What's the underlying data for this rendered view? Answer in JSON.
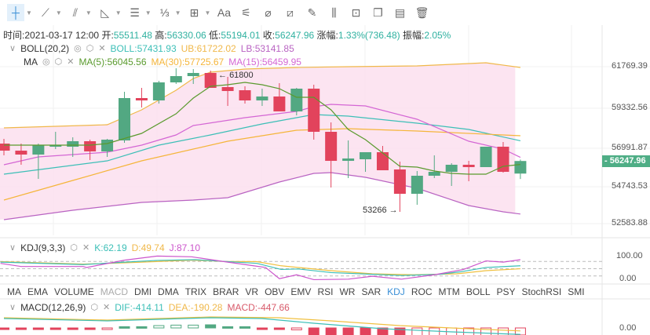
{
  "toolbar": {
    "tools": [
      {
        "name": "crosshair-icon",
        "glyph": "┼",
        "dropdown": true,
        "selected": true
      },
      {
        "name": "trend-line-icon",
        "glyph": "⟋",
        "dropdown": true
      },
      {
        "name": "parallel-lines-icon",
        "glyph": "⫽",
        "dropdown": true
      },
      {
        "name": "angle-icon",
        "glyph": "◺",
        "dropdown": true
      },
      {
        "name": "horizontal-lines-icon",
        "glyph": "☰",
        "dropdown": true
      },
      {
        "name": "fibonacci-icon",
        "glyph": "⅓",
        "dropdown": true
      },
      {
        "name": "rectangle-icon",
        "glyph": "⊞",
        "dropdown": true
      },
      {
        "name": "text-icon",
        "glyph": "Aa"
      },
      {
        "name": "measure-icon",
        "glyph": "⚟"
      },
      {
        "name": "eraser-icon",
        "glyph": "⌀"
      },
      {
        "name": "ruler-icon",
        "glyph": "⧄"
      },
      {
        "name": "pen-icon",
        "glyph": "✎"
      },
      {
        "name": "candles-icon",
        "glyph": "⫼"
      },
      {
        "name": "lock-icon",
        "glyph": "⊡"
      },
      {
        "name": "bookmark-icon",
        "glyph": "❐"
      },
      {
        "name": "calendar-edit-icon",
        "glyph": "▤"
      },
      {
        "name": "trash-icon",
        "glyph": "🗑"
      }
    ]
  },
  "info": {
    "time_label": "时间:",
    "time": "2021-03-17 12:00",
    "open_label": "开:",
    "open": "55511.48",
    "high_label": "高:",
    "high": "56330.06",
    "low_label": "低:",
    "low": "55194.01",
    "close_label": "收:",
    "close": "56247.96",
    "change_label": "涨幅:",
    "change": "1.33%(736.48)",
    "amp_label": "振幅:",
    "amp": "2.05%"
  },
  "boll": {
    "name": "BOLL(20,2)",
    "boll": "BOLL:57431.93",
    "ub": "UB:61722.02",
    "lb": "LB:53141.85"
  },
  "ma": {
    "name": "MA",
    "ma5": "MA(5):56045.56",
    "ma30": "MA(30):57725.67",
    "ma15": "MA(15):56459.95"
  },
  "kdj": {
    "name": "KDJ(9,3,3)",
    "k": "K:62.19",
    "d": "D:49.74",
    "j": "J:87.10",
    "axis": [
      "100.00",
      "0.00"
    ]
  },
  "macd": {
    "name": "MACD(12,26,9)",
    "dif": "DIF:-414.11",
    "dea": "DEA:-190.28",
    "macd": "MACD:-447.66",
    "axis": "0.00"
  },
  "price_axis": [
    "61769.39",
    "59332.56",
    "56991.87",
    "54743.53",
    "52583.88"
  ],
  "current_price": "56247.96",
  "annotations": {
    "high": "61800",
    "low": "53266"
  },
  "tabs": [
    "MA",
    "EMA",
    "VOLUME",
    "MACD",
    "DMI",
    "DMA",
    "TRIX",
    "BRAR",
    "VR",
    "OBV",
    "EMV",
    "RSI",
    "WR",
    "SAR",
    "KDJ",
    "ROC",
    "MTM",
    "BOLL",
    "PSY",
    "StochRSI",
    "SMI"
  ],
  "tab_dim": "MACD",
  "tab_active": "KDJ",
  "colors": {
    "up": "#52a882",
    "down": "#e2435c",
    "boll": "#3cbfb7",
    "ub": "#f0b84a",
    "lb": "#b963c2",
    "ma5": "#5a9a2e",
    "ma30": "#f5b53a",
    "ma15": "#d466d4",
    "fill": "#fbdfee",
    "k": "#3cbfb7",
    "d": "#f0c040",
    "j": "#cc55cc",
    "dif": "#3cbfb7",
    "dea": "#f0c040",
    "macd": "#d85a6a"
  },
  "chart_data": {
    "candles": [
      [
        57268,
        57543,
        56579,
        56854
      ],
      [
        56854,
        57268,
        56028,
        56625
      ],
      [
        56625,
        57268,
        55201,
        57176
      ],
      [
        57084,
        57957,
        56946,
        57176
      ],
      [
        57084,
        57635,
        56487,
        57406
      ],
      [
        57406,
        57498,
        56303,
        56809
      ],
      [
        56809,
        57543,
        56487,
        57498
      ],
      [
        57452,
        60299,
        57314,
        59932
      ],
      [
        59932,
        60529,
        59381,
        59794
      ],
      [
        59794,
        60942,
        59610,
        60850
      ],
      [
        60850,
        61677,
        60759,
        61218
      ],
      [
        61218,
        61631,
        60759,
        61402
      ],
      [
        61402,
        61539,
        60529,
        60529
      ],
      [
        60575,
        61172,
        59472,
        60345
      ],
      [
        60391,
        60621,
        59610,
        59794
      ],
      [
        59794,
        60483,
        59472,
        60024
      ],
      [
        60024,
        60805,
        59151,
        59151
      ],
      [
        59151,
        60529,
        58921,
        60483
      ],
      [
        60483,
        60713,
        57498,
        57957
      ],
      [
        57957,
        58508,
        54696,
        56257
      ],
      [
        56257,
        57452,
        55247,
        56395
      ],
      [
        56349,
        56763,
        55614,
        56763
      ],
      [
        56763,
        57130,
        55706,
        55706
      ],
      [
        55752,
        56211,
        53272,
        54328
      ],
      [
        54328,
        55660,
        53685,
        55385
      ],
      [
        55385,
        56579,
        55247,
        55614
      ],
      [
        55614,
        56120,
        54788,
        56028
      ],
      [
        56028,
        56257,
        55063,
        55890
      ],
      [
        55890,
        57084,
        55890,
        57084
      ],
      [
        57084,
        57360,
        55568,
        55614
      ],
      [
        55511.48,
        56330.06,
        55194.01,
        56247.96
      ]
    ],
    "ub": [
      [
        0,
        58186
      ],
      [
        6,
        58370
      ],
      [
        8,
        59243
      ],
      [
        10,
        60391
      ],
      [
        11,
        61080
      ],
      [
        12,
        61448
      ],
      [
        14,
        61631
      ],
      [
        17,
        61723
      ],
      [
        20,
        61769
      ],
      [
        24,
        61815
      ],
      [
        28,
        61999
      ],
      [
        30,
        61722
      ]
    ],
    "lb": [
      [
        0,
        52813
      ],
      [
        4,
        53364
      ],
      [
        8,
        53823
      ],
      [
        11,
        53961
      ],
      [
        13,
        54099
      ],
      [
        16,
        55017
      ],
      [
        18,
        55522
      ],
      [
        19,
        55568
      ],
      [
        21,
        55293
      ],
      [
        24,
        54650
      ],
      [
        27,
        53640
      ],
      [
        29,
        53272
      ],
      [
        30,
        53142
      ]
    ],
    "boll": [
      [
        0,
        55476
      ],
      [
        6,
        56257
      ],
      [
        9,
        57176
      ],
      [
        12,
        57773
      ],
      [
        15,
        58416
      ],
      [
        17,
        58784
      ],
      [
        18,
        58967
      ],
      [
        20,
        58875
      ],
      [
        24,
        58462
      ],
      [
        27,
        58095
      ],
      [
        30,
        57432
      ]
    ],
    "ma5": [
      [
        0,
        57176
      ],
      [
        5,
        57176
      ],
      [
        6,
        57268
      ],
      [
        8,
        57865
      ],
      [
        10,
        59013
      ],
      [
        11,
        59932
      ],
      [
        12,
        60621
      ],
      [
        13,
        60713
      ],
      [
        14,
        60850
      ],
      [
        15,
        60713
      ],
      [
        16,
        60483
      ],
      [
        17,
        59978
      ],
      [
        18,
        59978
      ],
      [
        19,
        59243
      ],
      [
        20,
        58095
      ],
      [
        21,
        57498
      ],
      [
        22,
        56717
      ],
      [
        23,
        55936
      ],
      [
        24,
        55890
      ],
      [
        25,
        55660
      ],
      [
        26,
        55522
      ],
      [
        27,
        55476
      ],
      [
        28,
        55476
      ],
      [
        29,
        55936
      ],
      [
        30,
        56046
      ]
    ],
    "ma15": [
      [
        0,
        56028
      ],
      [
        2,
        56487
      ],
      [
        6,
        56763
      ],
      [
        8,
        57176
      ],
      [
        10,
        57773
      ],
      [
        11,
        58324
      ],
      [
        14,
        58784
      ],
      [
        17,
        59151
      ],
      [
        18,
        59427
      ],
      [
        19,
        59565
      ],
      [
        21,
        59472
      ],
      [
        24,
        58692
      ],
      [
        27,
        57406
      ],
      [
        29,
        56946
      ],
      [
        30,
        56460
      ]
    ],
    "ma30": [
      [
        0,
        53961
      ],
      [
        4,
        55109
      ],
      [
        8,
        56257
      ],
      [
        13,
        57406
      ],
      [
        17,
        58049
      ],
      [
        20,
        58140
      ],
      [
        24,
        58003
      ],
      [
        30,
        57726
      ]
    ],
    "kdj_k": [
      [
        -0.2,
        77
      ],
      [
        4.6,
        67
      ],
      [
        7,
        77
      ],
      [
        8.9,
        84
      ],
      [
        11.1,
        87
      ],
      [
        12.8,
        80
      ],
      [
        14.7,
        72
      ],
      [
        16.1,
        47
      ],
      [
        17.1,
        49
      ],
      [
        19,
        34
      ],
      [
        21.4,
        27
      ],
      [
        23.1,
        22
      ],
      [
        25.3,
        27
      ],
      [
        26.5,
        37
      ],
      [
        28,
        55
      ],
      [
        30,
        62.19
      ]
    ],
    "kdj_d": [
      [
        -0.2,
        79
      ],
      [
        4.6,
        69
      ],
      [
        7,
        74
      ],
      [
        10.9,
        85
      ],
      [
        12.8,
        80
      ],
      [
        14.7,
        79
      ],
      [
        16.1,
        62
      ],
      [
        19,
        42
      ],
      [
        21.4,
        29
      ],
      [
        23.8,
        25
      ],
      [
        26.3,
        29
      ],
      [
        28,
        42
      ],
      [
        30,
        49.74
      ]
    ],
    "kdj_j": [
      [
        -0.2,
        72
      ],
      [
        1,
        59
      ],
      [
        4.6,
        59
      ],
      [
        4.8,
        55
      ],
      [
        7,
        85
      ],
      [
        8.9,
        102
      ],
      [
        10.9,
        99
      ],
      [
        12.8,
        79
      ],
      [
        14.5,
        62
      ],
      [
        15.2,
        55
      ],
      [
        16,
        9
      ],
      [
        17,
        25
      ],
      [
        18,
        5
      ],
      [
        20,
        7
      ],
      [
        21.4,
        19
      ],
      [
        23.1,
        7
      ],
      [
        25,
        25
      ],
      [
        26.7,
        47
      ],
      [
        28,
        82
      ],
      [
        29,
        77
      ],
      [
        30,
        87.1
      ]
    ],
    "dif": [
      [
        0,
        600
      ],
      [
        6,
        450
      ],
      [
        12,
        650
      ],
      [
        15,
        600
      ],
      [
        18,
        300
      ],
      [
        22,
        -50
      ],
      [
        26,
        -250
      ],
      [
        30,
        -414.11
      ]
    ],
    "dea": [
      [
        0,
        650
      ],
      [
        6,
        500
      ],
      [
        12,
        700
      ],
      [
        16,
        650
      ],
      [
        19,
        450
      ],
      [
        23,
        150
      ],
      [
        27,
        -50
      ],
      [
        30,
        -190.28
      ]
    ],
    "hist": [
      -100,
      -100,
      -100,
      -100,
      -100,
      -100,
      -80,
      80,
      80,
      150,
      180,
      180,
      200,
      80,
      80,
      -80,
      -80,
      -120,
      -500,
      -600,
      -700,
      -750,
      -800,
      -800,
      -700,
      -650,
      -600,
      -550,
      -500,
      -480,
      -447.66
    ],
    "hist_hollow": [
      6,
      9,
      10,
      11,
      17,
      24,
      25,
      26,
      27,
      28,
      29,
      30
    ],
    "price_ticks": [
      61769.39,
      59332.56,
      56991.87,
      54743.53,
      52583.88
    ]
  }
}
